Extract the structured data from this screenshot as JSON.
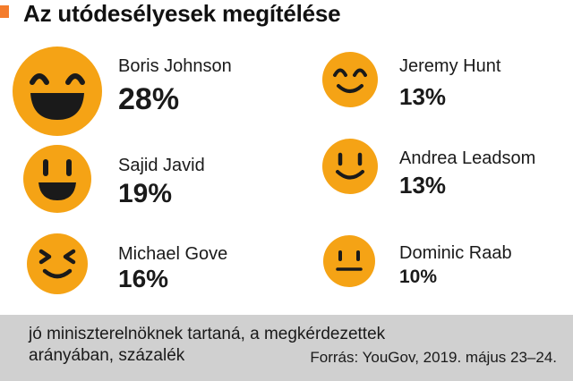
{
  "header": {
    "title": "Az utódesélyesek megítélése"
  },
  "chart_data": {
    "type": "table",
    "title": "Az utódesélyesek megítélése",
    "unit": "%",
    "rows": [
      {
        "name": "Boris Johnson",
        "value": 28,
        "label": "28%",
        "icon": "big-laughing-smiley-icon"
      },
      {
        "name": "Sajid Javid",
        "value": 19,
        "label": "19%",
        "icon": "grinning-smiley-icon"
      },
      {
        "name": "Michael Gove",
        "value": 16,
        "label": "16%",
        "icon": "squinting-smiley-icon"
      },
      {
        "name": "Jeremy Hunt",
        "value": 13,
        "label": "13%",
        "icon": "happy-smiley-icon"
      },
      {
        "name": "Andrea Leadsom",
        "value": 13,
        "label": "13%",
        "icon": "smiling-smiley-icon"
      },
      {
        "name": "Dominic Raab",
        "value": 10,
        "label": "10%",
        "icon": "neutral-face-icon"
      }
    ]
  },
  "footer": {
    "note": "jó miniszterelnöknek tartaná, a megkérdezettek arányában, százalék",
    "source": "Forrás: YouGov, 2019. május 23–24."
  },
  "colors": {
    "accent": "#f47c2c",
    "face": "#f5a315",
    "feature": "#1a1a1a",
    "footer_bg": "#d0d0d0"
  }
}
